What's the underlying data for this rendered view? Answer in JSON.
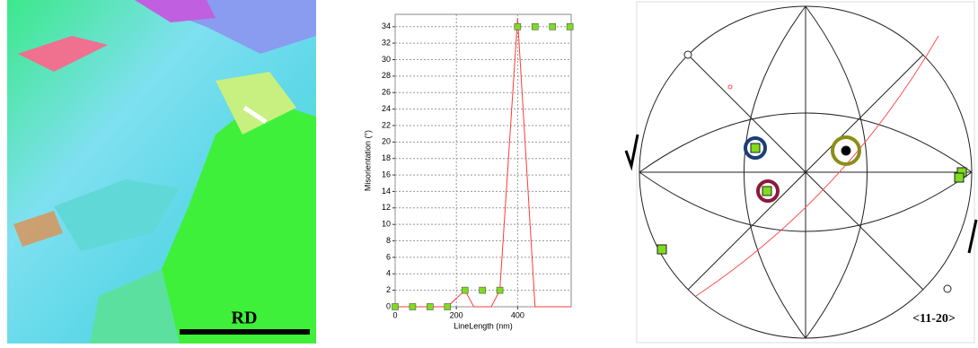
{
  "map": {
    "label": "RD"
  },
  "pole_figure": {
    "label": "<11-20>"
  },
  "chart_data": {
    "type": "line",
    "xlabel": "LineLength (nm)",
    "ylabel": "Misorientation (°)",
    "xlim": [
      0,
      575
    ],
    "xticks": [
      0,
      200,
      400
    ],
    "ylim": [
      0,
      35.5
    ],
    "yticks": [
      0,
      2,
      4,
      6,
      8,
      10,
      12,
      14,
      16,
      18,
      20,
      22,
      24,
      26,
      28,
      30,
      32,
      34
    ],
    "grid": true,
    "series": [
      {
        "color": "#ff3b3b",
        "style": "line",
        "x": [
          0,
          171,
          228,
          257,
          314,
          342,
          400,
          457,
          575
        ],
        "values": [
          0,
          0,
          2,
          0,
          0,
          2,
          35,
          0,
          0
        ]
      },
      {
        "color": "#7fdc1e",
        "style": "markers",
        "x": [
          0,
          57,
          114,
          171,
          228,
          285,
          342,
          400,
          457,
          514,
          571
        ],
        "values": [
          0,
          0,
          0,
          0,
          2,
          2,
          2,
          34,
          34,
          34,
          34
        ]
      }
    ]
  }
}
